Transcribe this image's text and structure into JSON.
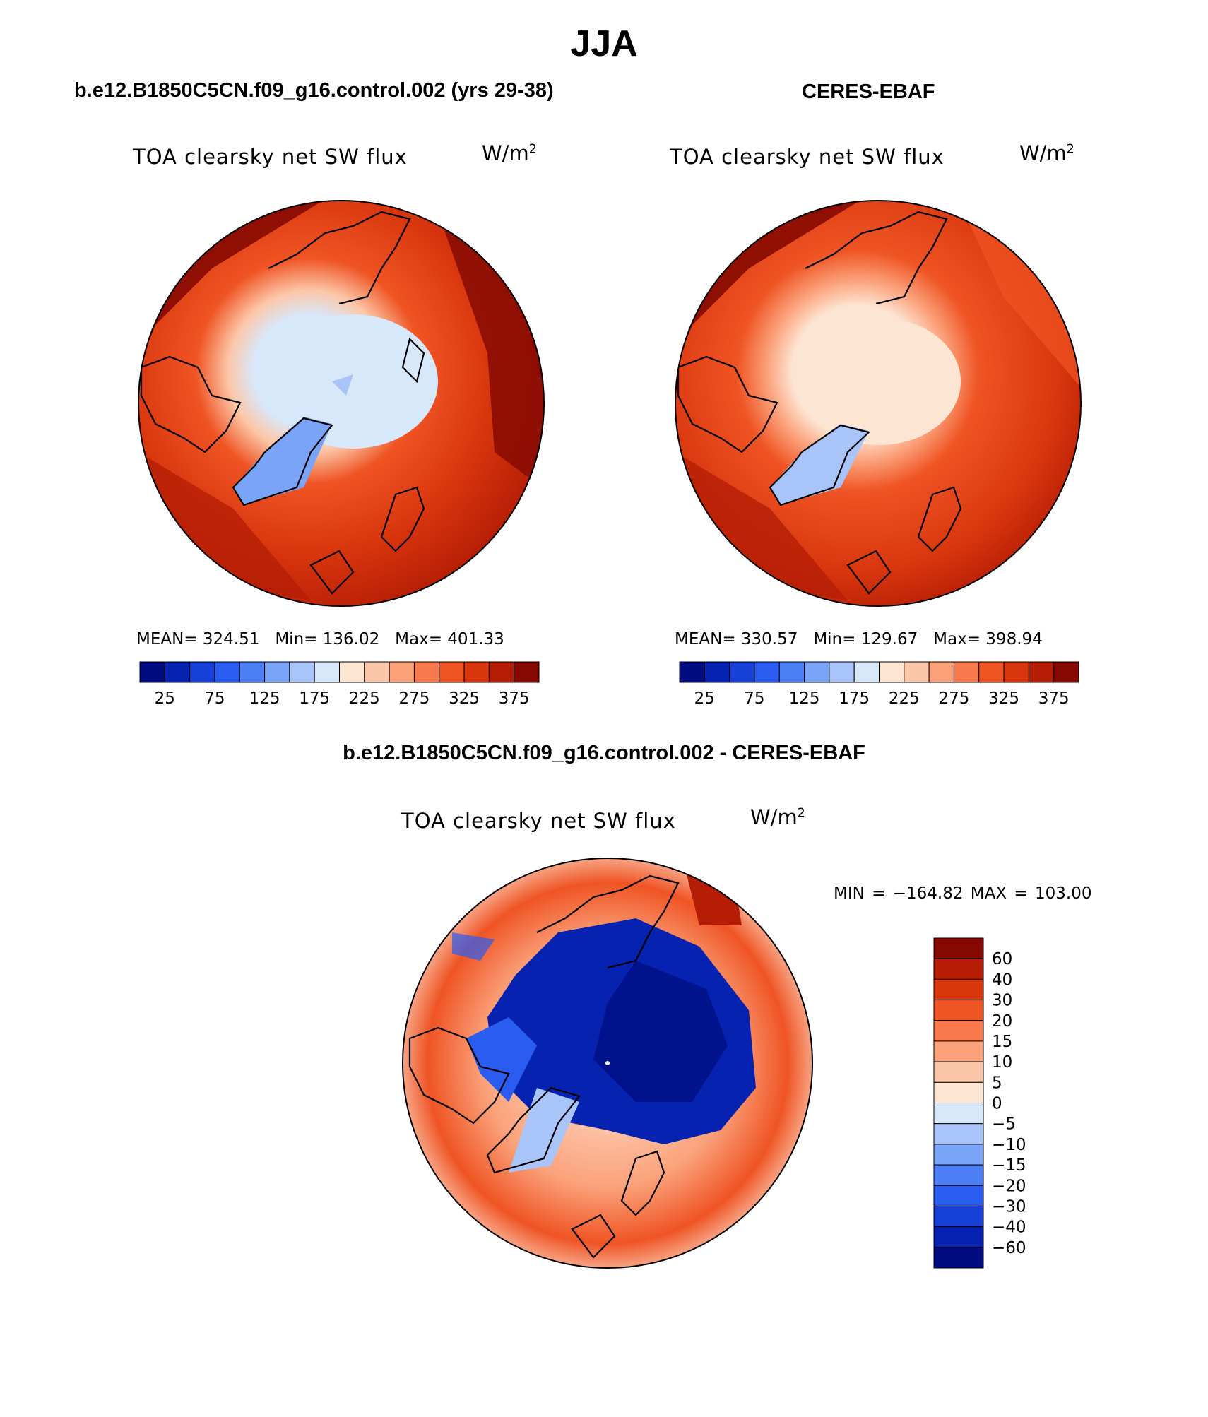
{
  "title": "JJA",
  "panels": [
    {
      "header": "b.e12.B1850C5CN.f09_g16.control.002 (yrs 29-38)",
      "field": "TOA clearsky net SW flux",
      "units_base": "W/m",
      "units_exp": "2",
      "stats": {
        "mean_label": "MEAN=",
        "mean": "324.51",
        "min_label": "Min=",
        "min": "136.02",
        "max_label": "Max=",
        "max": "401.33"
      }
    },
    {
      "header": "CERES-EBAF",
      "field": "TOA clearsky net SW flux",
      "units_base": "W/m",
      "units_exp": "2",
      "stats": {
        "mean_label": "MEAN=",
        "mean": "330.57",
        "min_label": "Min=",
        "min": "129.67",
        "max_label": "Max=",
        "max": "398.94"
      }
    },
    {
      "header": "b.e12.B1850C5CN.f09_g16.control.002 - CERES-EBAF",
      "field": "TOA clearsky net SW flux",
      "units_base": "W/m",
      "units_exp": "2",
      "minmax": "MIN = −164.82 MAX = 103.00"
    }
  ],
  "colorbar_abs": {
    "colors": [
      "#000c7f",
      "#0523b0",
      "#1640d8",
      "#2b5cf2",
      "#4c7ff5",
      "#7aa4f7",
      "#a8c4f9",
      "#d8e8fb",
      "#fde5d3",
      "#fcc7a8",
      "#fba27b",
      "#f87a4c",
      "#ef5424",
      "#d9360e",
      "#b51e05",
      "#860a02"
    ],
    "labels": [
      "25",
      "75",
      "125",
      "175",
      "225",
      "275",
      "325",
      "375"
    ]
  },
  "colorbar_diff": {
    "colors": [
      "#860a02",
      "#b51e05",
      "#d9360e",
      "#ef5424",
      "#f87a4c",
      "#fba27b",
      "#fcc7a8",
      "#fde5d3",
      "#d8e8fb",
      "#a8c4f9",
      "#7aa4f7",
      "#4c7ff5",
      "#2b5cf2",
      "#1640d8",
      "#0523b0",
      "#000c7f"
    ],
    "labels": [
      "60",
      "40",
      "30",
      "20",
      "15",
      "10",
      "5",
      "0",
      "−5",
      "−10",
      "−15",
      "−20",
      "−30",
      "−40",
      "−60"
    ]
  }
}
